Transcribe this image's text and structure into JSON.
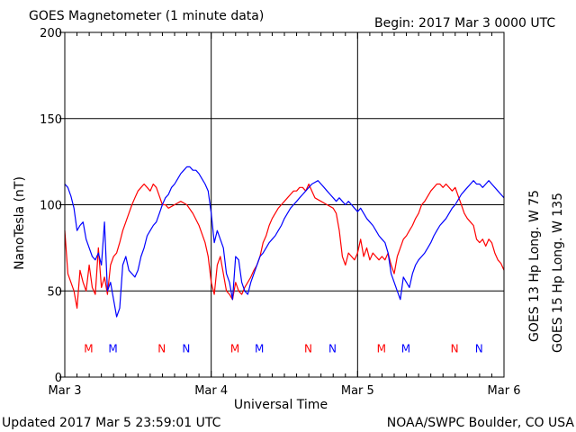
{
  "header": {
    "title": "GOES Magnetometer (1 minute data)",
    "begin": "Begin:  2017 Mar 3 0000 UTC"
  },
  "footer": {
    "updated": "Updated 2017 Mar  5 23:59:01 UTC",
    "credit": "NOAA/SWPC Boulder, CO USA"
  },
  "colors": {
    "goes13": "#ff0000",
    "goes15": "#0000ff",
    "grid": "#000000",
    "background": "#ffffff"
  },
  "chart_data": {
    "type": "line",
    "title": "GOES Magnetometer (1 minute data)",
    "xlabel": "Universal Time",
    "ylabel": "NanoTesla (nT)",
    "xlim": [
      0,
      72
    ],
    "ylim": [
      0,
      200
    ],
    "x_unit": "hours since 2017 Mar 3 0000 UTC",
    "yticks": [
      0,
      50,
      100,
      150,
      200
    ],
    "xticks": [
      {
        "x": 0,
        "label": "Mar 3"
      },
      {
        "x": 24,
        "label": "Mar 4"
      },
      {
        "x": 48,
        "label": "Mar 5"
      },
      {
        "x": 72,
        "label": "Mar 6"
      }
    ],
    "grid": true,
    "series": [
      {
        "name": "GOES 13 Hp  Long. W 75",
        "color": "#ff0000",
        "points": [
          [
            0,
            85
          ],
          [
            0.5,
            60
          ],
          [
            1,
            55
          ],
          [
            1.5,
            50
          ],
          [
            2,
            40
          ],
          [
            2.5,
            62
          ],
          [
            3,
            55
          ],
          [
            3.5,
            50
          ],
          [
            4,
            65
          ],
          [
            4.5,
            52
          ],
          [
            5,
            48
          ],
          [
            5.5,
            75
          ],
          [
            6,
            52
          ],
          [
            6.5,
            58
          ],
          [
            7,
            48
          ],
          [
            7.5,
            65
          ],
          [
            8,
            70
          ],
          [
            8.5,
            72
          ],
          [
            9,
            78
          ],
          [
            9.5,
            85
          ],
          [
            10,
            90
          ],
          [
            10.5,
            95
          ],
          [
            11,
            100
          ],
          [
            11.5,
            104
          ],
          [
            12,
            108
          ],
          [
            12.5,
            110
          ],
          [
            13,
            112
          ],
          [
            13.5,
            110
          ],
          [
            14,
            108
          ],
          [
            14.5,
            112
          ],
          [
            15,
            110
          ],
          [
            15.5,
            105
          ],
          [
            16,
            100
          ],
          [
            16.5,
            100
          ],
          [
            17,
            98
          ],
          [
            18,
            100
          ],
          [
            19,
            102
          ],
          [
            20,
            100
          ],
          [
            21,
            95
          ],
          [
            22,
            88
          ],
          [
            23,
            78
          ],
          [
            23.5,
            70
          ],
          [
            24,
            55
          ],
          [
            24.5,
            48
          ],
          [
            25,
            65
          ],
          [
            25.5,
            70
          ],
          [
            26,
            60
          ],
          [
            26.5,
            50
          ],
          [
            27,
            48
          ],
          [
            27.5,
            45
          ],
          [
            28,
            55
          ],
          [
            28.5,
            50
          ],
          [
            29,
            48
          ],
          [
            29.5,
            52
          ],
          [
            30,
            55
          ],
          [
            30.5,
            58
          ],
          [
            31,
            62
          ],
          [
            31.5,
            65
          ],
          [
            32,
            70
          ],
          [
            32.5,
            78
          ],
          [
            33,
            82
          ],
          [
            33.5,
            88
          ],
          [
            34,
            92
          ],
          [
            34.5,
            95
          ],
          [
            35,
            98
          ],
          [
            35.5,
            100
          ],
          [
            36,
            102
          ],
          [
            36.5,
            104
          ],
          [
            37,
            106
          ],
          [
            37.5,
            108
          ],
          [
            38,
            108
          ],
          [
            38.5,
            110
          ],
          [
            39,
            110
          ],
          [
            39.5,
            108
          ],
          [
            40,
            112
          ],
          [
            40.5,
            108
          ],
          [
            41,
            104
          ],
          [
            41.5,
            103
          ],
          [
            42,
            102
          ],
          [
            43,
            100
          ],
          [
            44,
            98
          ],
          [
            44.5,
            95
          ],
          [
            45,
            85
          ],
          [
            45.5,
            70
          ],
          [
            46,
            65
          ],
          [
            46.5,
            72
          ],
          [
            47,
            70
          ],
          [
            47.5,
            68
          ],
          [
            48,
            72
          ],
          [
            48.5,
            80
          ],
          [
            49,
            70
          ],
          [
            49.5,
            75
          ],
          [
            50,
            68
          ],
          [
            50.5,
            72
          ],
          [
            51,
            70
          ],
          [
            51.5,
            68
          ],
          [
            52,
            70
          ],
          [
            52.5,
            68
          ],
          [
            53,
            72
          ],
          [
            53.5,
            65
          ],
          [
            54,
            60
          ],
          [
            54.5,
            70
          ],
          [
            55,
            75
          ],
          [
            55.5,
            80
          ],
          [
            56,
            82
          ],
          [
            56.5,
            85
          ],
          [
            57,
            88
          ],
          [
            57.5,
            92
          ],
          [
            58,
            95
          ],
          [
            58.5,
            100
          ],
          [
            59,
            102
          ],
          [
            59.5,
            105
          ],
          [
            60,
            108
          ],
          [
            60.5,
            110
          ],
          [
            61,
            112
          ],
          [
            61.5,
            112
          ],
          [
            62,
            110
          ],
          [
            62.5,
            112
          ],
          [
            63,
            110
          ],
          [
            63.5,
            108
          ],
          [
            64,
            110
          ],
          [
            64.5,
            105
          ],
          [
            65,
            100
          ],
          [
            65.5,
            95
          ],
          [
            66,
            92
          ],
          [
            66.5,
            90
          ],
          [
            67,
            88
          ],
          [
            67.5,
            80
          ],
          [
            68,
            78
          ],
          [
            68.5,
            80
          ],
          [
            69,
            76
          ],
          [
            69.5,
            80
          ],
          [
            70,
            78
          ],
          [
            70.5,
            72
          ],
          [
            71,
            68
          ],
          [
            71.5,
            66
          ],
          [
            72,
            62
          ]
        ]
      },
      {
        "name": "GOES 15 Hp  Long. W 135",
        "color": "#0000ff",
        "points": [
          [
            0,
            112
          ],
          [
            0.5,
            110
          ],
          [
            1,
            105
          ],
          [
            1.5,
            98
          ],
          [
            2,
            85
          ],
          [
            2.5,
            88
          ],
          [
            3,
            90
          ],
          [
            3.5,
            80
          ],
          [
            4,
            75
          ],
          [
            4.5,
            70
          ],
          [
            5,
            68
          ],
          [
            5.5,
            72
          ],
          [
            6,
            65
          ],
          [
            6.5,
            90
          ],
          [
            7,
            50
          ],
          [
            7.5,
            55
          ],
          [
            8,
            45
          ],
          [
            8.5,
            35
          ],
          [
            9,
            40
          ],
          [
            9.5,
            65
          ],
          [
            10,
            70
          ],
          [
            10.5,
            62
          ],
          [
            11,
            60
          ],
          [
            11.5,
            58
          ],
          [
            12,
            62
          ],
          [
            12.5,
            70
          ],
          [
            13,
            75
          ],
          [
            13.5,
            82
          ],
          [
            14,
            85
          ],
          [
            14.5,
            88
          ],
          [
            15,
            90
          ],
          [
            15.5,
            95
          ],
          [
            16,
            100
          ],
          [
            16.5,
            104
          ],
          [
            17,
            106
          ],
          [
            17.5,
            110
          ],
          [
            18,
            112
          ],
          [
            18.5,
            115
          ],
          [
            19,
            118
          ],
          [
            19.5,
            120
          ],
          [
            20,
            122
          ],
          [
            20.5,
            122
          ],
          [
            21,
            120
          ],
          [
            21.5,
            120
          ],
          [
            22,
            118
          ],
          [
            22.5,
            115
          ],
          [
            23,
            112
          ],
          [
            23.5,
            108
          ],
          [
            24,
            95
          ],
          [
            24.5,
            78
          ],
          [
            25,
            85
          ],
          [
            25.5,
            80
          ],
          [
            26,
            75
          ],
          [
            26.5,
            60
          ],
          [
            27,
            55
          ],
          [
            27.5,
            45
          ],
          [
            28,
            70
          ],
          [
            28.5,
            68
          ],
          [
            29,
            55
          ],
          [
            29.5,
            50
          ],
          [
            30,
            48
          ],
          [
            30.5,
            55
          ],
          [
            31,
            60
          ],
          [
            31.5,
            65
          ],
          [
            32,
            70
          ],
          [
            32.5,
            72
          ],
          [
            33,
            75
          ],
          [
            33.5,
            78
          ],
          [
            34,
            80
          ],
          [
            34.5,
            82
          ],
          [
            35,
            85
          ],
          [
            35.5,
            88
          ],
          [
            36,
            92
          ],
          [
            36.5,
            95
          ],
          [
            37,
            98
          ],
          [
            37.5,
            100
          ],
          [
            38,
            102
          ],
          [
            38.5,
            104
          ],
          [
            39,
            106
          ],
          [
            39.5,
            108
          ],
          [
            40,
            110
          ],
          [
            40.5,
            112
          ],
          [
            41,
            113
          ],
          [
            41.5,
            114
          ],
          [
            42,
            112
          ],
          [
            42.5,
            110
          ],
          [
            43,
            108
          ],
          [
            43.5,
            106
          ],
          [
            44,
            104
          ],
          [
            44.5,
            102
          ],
          [
            45,
            104
          ],
          [
            45.5,
            102
          ],
          [
            46,
            100
          ],
          [
            46.5,
            102
          ],
          [
            47,
            100
          ],
          [
            47.5,
            98
          ],
          [
            48,
            96
          ],
          [
            48.5,
            98
          ],
          [
            49,
            95
          ],
          [
            49.5,
            92
          ],
          [
            50,
            90
          ],
          [
            50.5,
            88
          ],
          [
            51,
            85
          ],
          [
            51.5,
            82
          ],
          [
            52,
            80
          ],
          [
            52.5,
            78
          ],
          [
            53,
            72
          ],
          [
            53.5,
            60
          ],
          [
            54,
            55
          ],
          [
            54.5,
            50
          ],
          [
            55,
            45
          ],
          [
            55.5,
            58
          ],
          [
            56,
            55
          ],
          [
            56.5,
            52
          ],
          [
            57,
            60
          ],
          [
            57.5,
            65
          ],
          [
            58,
            68
          ],
          [
            58.5,
            70
          ],
          [
            59,
            72
          ],
          [
            59.5,
            75
          ],
          [
            60,
            78
          ],
          [
            60.5,
            82
          ],
          [
            61,
            85
          ],
          [
            61.5,
            88
          ],
          [
            62,
            90
          ],
          [
            62.5,
            92
          ],
          [
            63,
            95
          ],
          [
            63.5,
            98
          ],
          [
            64,
            100
          ],
          [
            64.5,
            103
          ],
          [
            65,
            106
          ],
          [
            65.5,
            108
          ],
          [
            66,
            110
          ],
          [
            66.5,
            112
          ],
          [
            67,
            114
          ],
          [
            67.5,
            112
          ],
          [
            68,
            112
          ],
          [
            68.5,
            110
          ],
          [
            69,
            112
          ],
          [
            69.5,
            114
          ],
          [
            70,
            112
          ],
          [
            70.5,
            110
          ],
          [
            71,
            108
          ],
          [
            71.5,
            106
          ],
          [
            72,
            104
          ]
        ]
      }
    ],
    "annotations": [
      {
        "x": 3.9,
        "y": 17,
        "text": "M",
        "color": "#ff0000"
      },
      {
        "x": 7.9,
        "y": 17,
        "text": "M",
        "color": "#0000ff"
      },
      {
        "x": 15.9,
        "y": 17,
        "text": "N",
        "color": "#ff0000"
      },
      {
        "x": 19.9,
        "y": 17,
        "text": "N",
        "color": "#0000ff"
      },
      {
        "x": 27.9,
        "y": 17,
        "text": "M",
        "color": "#ff0000"
      },
      {
        "x": 31.9,
        "y": 17,
        "text": "M",
        "color": "#0000ff"
      },
      {
        "x": 39.9,
        "y": 17,
        "text": "N",
        "color": "#ff0000"
      },
      {
        "x": 43.9,
        "y": 17,
        "text": "N",
        "color": "#0000ff"
      },
      {
        "x": 51.9,
        "y": 17,
        "text": "M",
        "color": "#ff0000"
      },
      {
        "x": 55.9,
        "y": 17,
        "text": "M",
        "color": "#0000ff"
      },
      {
        "x": 63.9,
        "y": 17,
        "text": "N",
        "color": "#ff0000"
      },
      {
        "x": 67.9,
        "y": 17,
        "text": "N",
        "color": "#0000ff"
      }
    ],
    "legend": {
      "placement": "right-vertical",
      "entries": [
        {
          "text": "GOES 13 Hp  Long. W 75",
          "color": "#ff0000"
        },
        {
          "text": "GOES 15 Hp  Long. W 135",
          "color": "#0000ff"
        }
      ]
    }
  }
}
